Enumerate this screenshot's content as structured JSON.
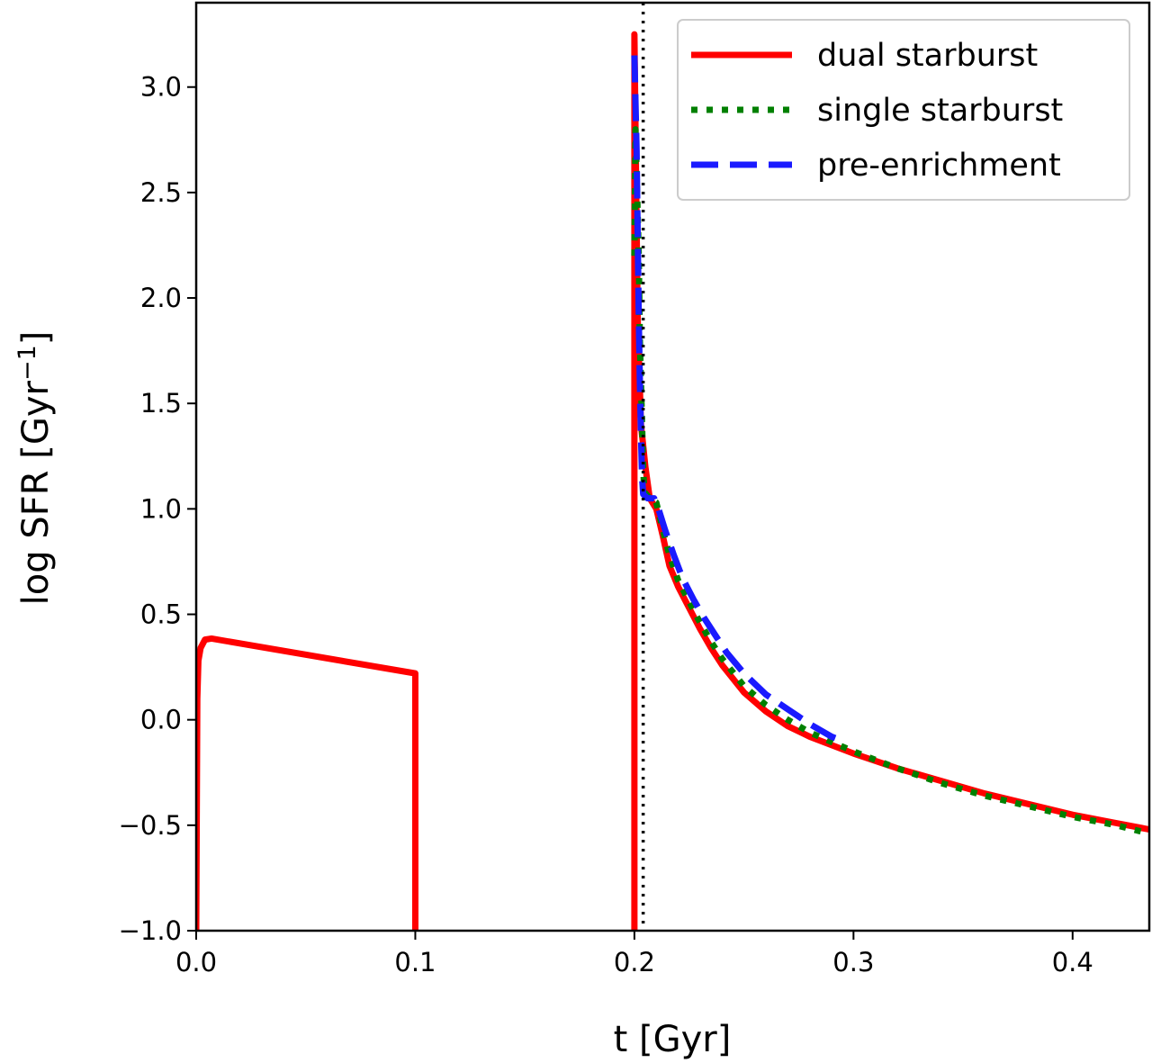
{
  "chart_data": {
    "type": "line",
    "title": "",
    "xlabel": "t [Gyr]",
    "ylabel": {
      "text": "log SFR [Gyr",
      "superscript": "−1",
      "suffix": "]"
    },
    "xlim": [
      0.0,
      0.435
    ],
    "ylim": [
      -1.0,
      3.4
    ],
    "x_ticks": [
      0.0,
      0.1,
      0.2,
      0.3,
      0.4
    ],
    "x_tick_labels": [
      "0.0",
      "0.1",
      "0.2",
      "0.3",
      "0.4"
    ],
    "y_ticks": [
      -1.0,
      -0.5,
      0.0,
      0.5,
      1.0,
      1.5,
      2.0,
      2.5,
      3.0
    ],
    "y_tick_labels": [
      "−1.0",
      "−0.5",
      "0.0",
      "0.5",
      "1.0",
      "1.5",
      "2.0",
      "2.5",
      "3.0"
    ],
    "grid": false,
    "legend_position": "top-right",
    "reference_line": {
      "x": 0.204,
      "style": "dotted",
      "color": "#000000"
    },
    "series": [
      {
        "name": "dual starburst",
        "style": "solid",
        "color": "#ff0000",
        "segments": [
          [
            [
              0.0,
              -1.0
            ],
            [
              0.0005,
              0.1
            ],
            [
              0.001,
              0.28
            ],
            [
              0.002,
              0.34
            ],
            [
              0.004,
              0.38
            ],
            [
              0.007,
              0.385
            ],
            [
              0.1,
              0.22
            ],
            [
              0.1,
              -1.0
            ]
          ],
          [
            [
              0.2,
              -1.0
            ],
            [
              0.2,
              3.25
            ],
            [
              0.2015,
              1.9
            ],
            [
              0.203,
              1.4
            ],
            [
              0.205,
              1.2
            ],
            [
              0.207,
              1.05
            ],
            [
              0.21,
              1.0
            ],
            [
              0.213,
              0.87
            ],
            [
              0.216,
              0.73
            ],
            [
              0.22,
              0.63
            ],
            [
              0.225,
              0.53
            ],
            [
              0.23,
              0.43
            ],
            [
              0.235,
              0.34
            ],
            [
              0.24,
              0.26
            ],
            [
              0.25,
              0.13
            ],
            [
              0.26,
              0.04
            ],
            [
              0.27,
              -0.03
            ],
            [
              0.28,
              -0.08
            ],
            [
              0.3,
              -0.16
            ],
            [
              0.32,
              -0.23
            ],
            [
              0.34,
              -0.29
            ],
            [
              0.36,
              -0.35
            ],
            [
              0.38,
              -0.4
            ],
            [
              0.4,
              -0.45
            ],
            [
              0.42,
              -0.49
            ],
            [
              0.435,
              -0.52
            ]
          ]
        ]
      },
      {
        "name": "single starburst",
        "style": "dotted",
        "color": "#008000",
        "segments": [
          [
            [
              0.2,
              2.2
            ],
            [
              0.2005,
              2.8
            ],
            [
              0.201,
              2.6
            ],
            [
              0.202,
              2.2
            ],
            [
              0.2025,
              1.8
            ],
            [
              0.203,
              1.6
            ],
            [
              0.2035,
              1.4
            ],
            [
              0.204,
              1.2
            ],
            [
              0.2045,
              1.08
            ],
            [
              0.207,
              1.05
            ],
            [
              0.21,
              1.03
            ],
            [
              0.213,
              0.9
            ],
            [
              0.216,
              0.78
            ],
            [
              0.22,
              0.66
            ],
            [
              0.225,
              0.56
            ],
            [
              0.23,
              0.46
            ],
            [
              0.235,
              0.37
            ],
            [
              0.24,
              0.29
            ],
            [
              0.25,
              0.16
            ],
            [
              0.26,
              0.07
            ],
            [
              0.27,
              0.0
            ],
            [
              0.28,
              -0.06
            ],
            [
              0.3,
              -0.15
            ],
            [
              0.32,
              -0.23
            ],
            [
              0.34,
              -0.3
            ],
            [
              0.36,
              -0.36
            ],
            [
              0.38,
              -0.41
            ],
            [
              0.4,
              -0.46
            ],
            [
              0.42,
              -0.5
            ],
            [
              0.435,
              -0.54
            ]
          ]
        ]
      },
      {
        "name": "pre-enrichment",
        "style": "dashed",
        "color": "#1a1aff",
        "segments": [
          [
            [
              0.2,
              3.15
            ],
            [
              0.201,
              2.7
            ],
            [
              0.2015,
              2.3
            ],
            [
              0.202,
              1.9
            ],
            [
              0.2025,
              1.6
            ],
            [
              0.203,
              1.35
            ],
            [
              0.2035,
              1.15
            ],
            [
              0.204,
              1.07
            ],
            [
              0.206,
              1.05
            ],
            [
              0.209,
              1.05
            ],
            [
              0.211,
              1.0
            ],
            [
              0.214,
              0.9
            ],
            [
              0.218,
              0.78
            ],
            [
              0.222,
              0.67
            ],
            [
              0.227,
              0.57
            ],
            [
              0.232,
              0.48
            ],
            [
              0.237,
              0.4
            ],
            [
              0.242,
              0.32
            ],
            [
              0.25,
              0.22
            ],
            [
              0.26,
              0.12
            ],
            [
              0.27,
              0.05
            ],
            [
              0.28,
              -0.02
            ],
            [
              0.29,
              -0.08
            ],
            [
              0.295,
              -0.1
            ]
          ]
        ]
      }
    ]
  }
}
